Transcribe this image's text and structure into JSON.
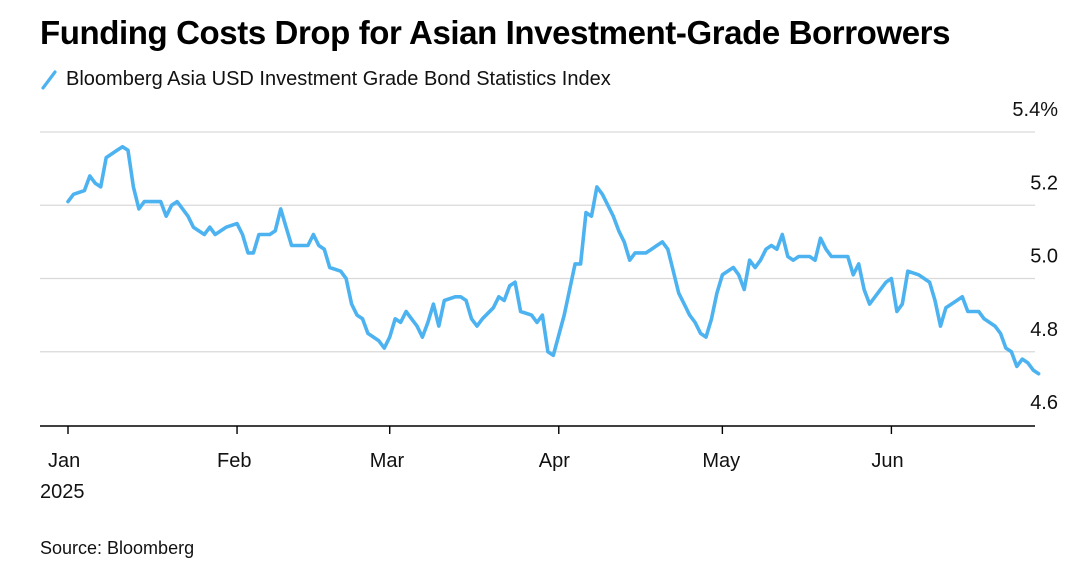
{
  "title": "Funding Costs Drop for Asian Investment-Grade Borrowers",
  "source": "Source: Bloomberg",
  "colors": {
    "series": "#4db3f0",
    "grid": "#d9d9d9",
    "axis": "#000000"
  },
  "chart_data": {
    "type": "line",
    "title": "Funding Costs Drop for Asian Investment-Grade Borrowers",
    "xlabel": "",
    "ylabel": "",
    "ylim": [
      4.6,
      5.4
    ],
    "yticks": [
      5.4,
      5.2,
      5.0,
      4.8,
      4.6
    ],
    "ytick_labels": [
      "5.4%",
      "5.2",
      "5.0",
      "4.8",
      "4.6"
    ],
    "grid": true,
    "legend": "top-left",
    "x_ticks": [
      {
        "x": "2025-01-01",
        "label": "Jan"
      },
      {
        "x": "2025-02-01",
        "label": "Feb"
      },
      {
        "x": "2025-03-01",
        "label": "Mar"
      },
      {
        "x": "2025-04-01",
        "label": "Apr"
      },
      {
        "x": "2025-05-01",
        "label": "May"
      },
      {
        "x": "2025-06-01",
        "label": "Jun"
      }
    ],
    "x_year_label": "2025",
    "series": [
      {
        "name": "Bloomberg Asia USD Investment Grade Bond Statistics Index",
        "color": "#4db3f0",
        "points": [
          [
            "2025-01-01",
            5.21
          ],
          [
            "2025-01-02",
            5.23
          ],
          [
            "2025-01-04",
            5.24
          ],
          [
            "2025-01-05",
            5.28
          ],
          [
            "2025-01-06",
            5.26
          ],
          [
            "2025-01-07",
            5.25
          ],
          [
            "2025-01-08",
            5.33
          ],
          [
            "2025-01-10",
            5.35
          ],
          [
            "2025-01-11",
            5.36
          ],
          [
            "2025-01-12",
            5.35
          ],
          [
            "2025-01-13",
            5.25
          ],
          [
            "2025-01-14",
            5.19
          ],
          [
            "2025-01-15",
            5.21
          ],
          [
            "2025-01-17",
            5.21
          ],
          [
            "2025-01-18",
            5.21
          ],
          [
            "2025-01-19",
            5.17
          ],
          [
            "2025-01-20",
            5.2
          ],
          [
            "2025-01-21",
            5.21
          ],
          [
            "2025-01-23",
            5.17
          ],
          [
            "2025-01-24",
            5.14
          ],
          [
            "2025-01-26",
            5.12
          ],
          [
            "2025-01-27",
            5.14
          ],
          [
            "2025-01-28",
            5.12
          ],
          [
            "2025-01-30",
            5.14
          ],
          [
            "2025-02-01",
            5.15
          ],
          [
            "2025-02-02",
            5.12
          ],
          [
            "2025-02-03",
            5.07
          ],
          [
            "2025-02-04",
            5.07
          ],
          [
            "2025-02-05",
            5.12
          ],
          [
            "2025-02-07",
            5.12
          ],
          [
            "2025-02-08",
            5.13
          ],
          [
            "2025-02-09",
            5.19
          ],
          [
            "2025-02-10",
            5.14
          ],
          [
            "2025-02-11",
            5.09
          ],
          [
            "2025-02-13",
            5.09
          ],
          [
            "2025-02-14",
            5.09
          ],
          [
            "2025-02-15",
            5.12
          ],
          [
            "2025-02-16",
            5.09
          ],
          [
            "2025-02-17",
            5.08
          ],
          [
            "2025-02-18",
            5.03
          ],
          [
            "2025-02-20",
            5.02
          ],
          [
            "2025-02-21",
            5.0
          ],
          [
            "2025-02-22",
            4.93
          ],
          [
            "2025-02-23",
            4.9
          ],
          [
            "2025-02-24",
            4.89
          ],
          [
            "2025-02-25",
            4.85
          ],
          [
            "2025-02-27",
            4.83
          ],
          [
            "2025-02-28",
            4.81
          ],
          [
            "2025-03-01",
            4.84
          ],
          [
            "2025-03-02",
            4.89
          ],
          [
            "2025-03-03",
            4.88
          ],
          [
            "2025-03-04",
            4.91
          ],
          [
            "2025-03-05",
            4.89
          ],
          [
            "2025-03-06",
            4.87
          ],
          [
            "2025-03-07",
            4.84
          ],
          [
            "2025-03-08",
            4.88
          ],
          [
            "2025-03-09",
            4.93
          ],
          [
            "2025-03-10",
            4.87
          ],
          [
            "2025-03-11",
            4.94
          ],
          [
            "2025-03-13",
            4.95
          ],
          [
            "2025-03-14",
            4.95
          ],
          [
            "2025-03-15",
            4.94
          ],
          [
            "2025-03-16",
            4.89
          ],
          [
            "2025-03-17",
            4.87
          ],
          [
            "2025-03-18",
            4.89
          ],
          [
            "2025-03-20",
            4.92
          ],
          [
            "2025-03-21",
            4.95
          ],
          [
            "2025-03-22",
            4.94
          ],
          [
            "2025-03-23",
            4.98
          ],
          [
            "2025-03-24",
            4.99
          ],
          [
            "2025-03-25",
            4.91
          ],
          [
            "2025-03-27",
            4.9
          ],
          [
            "2025-03-28",
            4.88
          ],
          [
            "2025-03-29",
            4.9
          ],
          [
            "2025-03-30",
            4.8
          ],
          [
            "2025-03-31",
            4.79
          ],
          [
            "2025-04-02",
            4.9
          ],
          [
            "2025-04-04",
            5.04
          ],
          [
            "2025-04-05",
            5.04
          ],
          [
            "2025-04-06",
            5.18
          ],
          [
            "2025-04-07",
            5.17
          ],
          [
            "2025-04-08",
            5.25
          ],
          [
            "2025-04-09",
            5.23
          ],
          [
            "2025-04-11",
            5.17
          ],
          [
            "2025-04-12",
            5.13
          ],
          [
            "2025-04-13",
            5.1
          ],
          [
            "2025-04-14",
            5.05
          ],
          [
            "2025-04-15",
            5.07
          ],
          [
            "2025-04-17",
            5.07
          ],
          [
            "2025-04-18",
            5.08
          ],
          [
            "2025-04-19",
            5.09
          ],
          [
            "2025-04-20",
            5.1
          ],
          [
            "2025-04-21",
            5.08
          ],
          [
            "2025-04-22",
            5.02
          ],
          [
            "2025-04-23",
            4.96
          ],
          [
            "2025-04-24",
            4.93
          ],
          [
            "2025-04-25",
            4.9
          ],
          [
            "2025-04-26",
            4.88
          ],
          [
            "2025-04-27",
            4.85
          ],
          [
            "2025-04-28",
            4.84
          ],
          [
            "2025-04-29",
            4.89
          ],
          [
            "2025-04-30",
            4.96
          ],
          [
            "2025-05-01",
            5.01
          ],
          [
            "2025-05-03",
            5.03
          ],
          [
            "2025-05-04",
            5.01
          ],
          [
            "2025-05-05",
            4.97
          ],
          [
            "2025-05-06",
            5.05
          ],
          [
            "2025-05-07",
            5.03
          ],
          [
            "2025-05-08",
            5.05
          ],
          [
            "2025-05-09",
            5.08
          ],
          [
            "2025-05-10",
            5.09
          ],
          [
            "2025-05-11",
            5.08
          ],
          [
            "2025-05-12",
            5.12
          ],
          [
            "2025-05-13",
            5.06
          ],
          [
            "2025-05-14",
            5.05
          ],
          [
            "2025-05-15",
            5.06
          ],
          [
            "2025-05-17",
            5.06
          ],
          [
            "2025-05-18",
            5.05
          ],
          [
            "2025-05-19",
            5.11
          ],
          [
            "2025-05-20",
            5.08
          ],
          [
            "2025-05-21",
            5.06
          ],
          [
            "2025-05-23",
            5.06
          ],
          [
            "2025-05-24",
            5.06
          ],
          [
            "2025-05-25",
            5.01
          ],
          [
            "2025-05-26",
            5.04
          ],
          [
            "2025-05-27",
            4.97
          ],
          [
            "2025-05-28",
            4.93
          ],
          [
            "2025-05-29",
            4.95
          ],
          [
            "2025-05-30",
            4.97
          ],
          [
            "2025-05-31",
            4.99
          ],
          [
            "2025-06-01",
            5.0
          ],
          [
            "2025-06-02",
            4.91
          ],
          [
            "2025-06-03",
            4.93
          ],
          [
            "2025-06-04",
            5.02
          ],
          [
            "2025-06-06",
            5.01
          ],
          [
            "2025-06-07",
            5.0
          ],
          [
            "2025-06-08",
            4.99
          ],
          [
            "2025-06-09",
            4.94
          ],
          [
            "2025-06-10",
            4.87
          ],
          [
            "2025-06-11",
            4.92
          ],
          [
            "2025-06-12",
            4.93
          ],
          [
            "2025-06-13",
            4.94
          ],
          [
            "2025-06-14",
            4.95
          ],
          [
            "2025-06-15",
            4.91
          ],
          [
            "2025-06-17",
            4.91
          ],
          [
            "2025-06-18",
            4.89
          ],
          [
            "2025-06-20",
            4.87
          ],
          [
            "2025-06-21",
            4.85
          ],
          [
            "2025-06-22",
            4.81
          ],
          [
            "2025-06-23",
            4.8
          ],
          [
            "2025-06-24",
            4.76
          ],
          [
            "2025-06-25",
            4.78
          ],
          [
            "2025-06-26",
            4.77
          ],
          [
            "2025-06-27",
            4.75
          ],
          [
            "2025-06-28",
            4.74
          ]
        ]
      }
    ]
  }
}
